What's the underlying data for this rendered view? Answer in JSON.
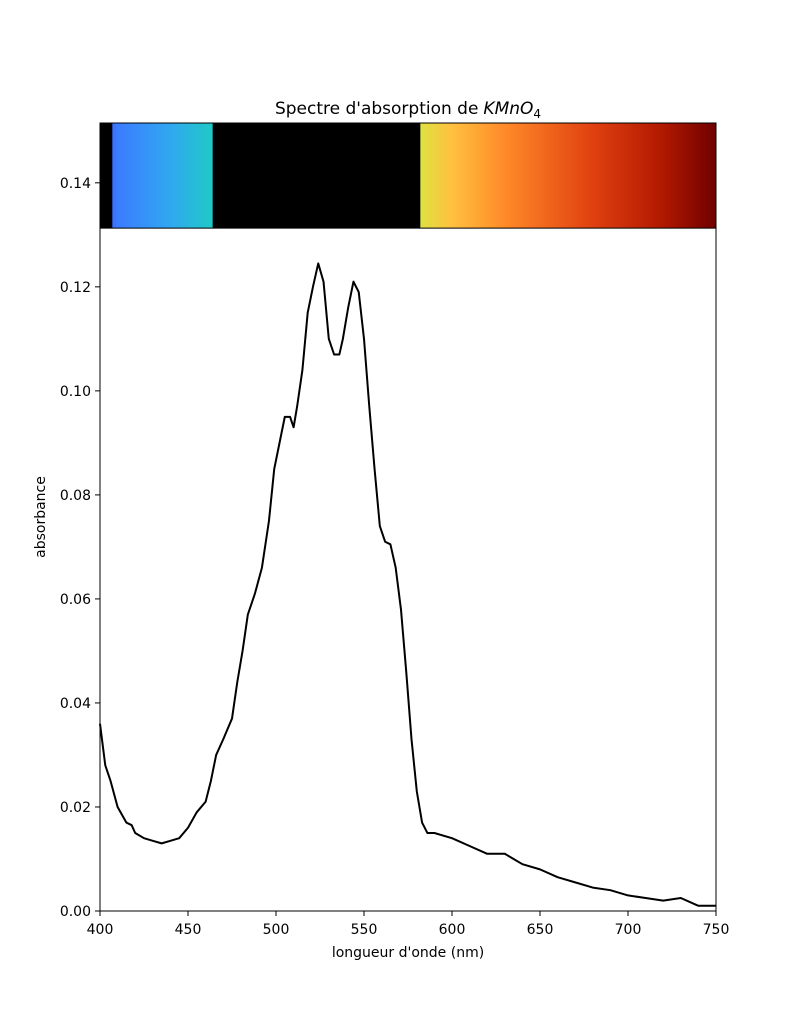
{
  "chart_data": {
    "type": "line",
    "title_parts": [
      "Spectre d'absorption de",
      "KMnO",
      "4"
    ],
    "xlabel": "longueur d'onde (nm)",
    "ylabel": "absorbance",
    "color": "#000000",
    "x": [
      400,
      403,
      406,
      410,
      415,
      418,
      420,
      425,
      430,
      435,
      440,
      445,
      450,
      455,
      460,
      463,
      466,
      470,
      475,
      478,
      481,
      484,
      488,
      492,
      496,
      499,
      502,
      505,
      508,
      510,
      512,
      515,
      518,
      521,
      524,
      527,
      530,
      533,
      536,
      538,
      541,
      544,
      547,
      550,
      553,
      556,
      559,
      562,
      565,
      568,
      571,
      574,
      577,
      580,
      583,
      586,
      590,
      600,
      610,
      620,
      630,
      640,
      650,
      660,
      670,
      680,
      690,
      700,
      710,
      720,
      730,
      740,
      750
    ],
    "values": [
      0.036,
      0.028,
      0.025,
      0.02,
      0.017,
      0.0165,
      0.015,
      0.014,
      0.0135,
      0.013,
      0.0135,
      0.014,
      0.016,
      0.019,
      0.021,
      0.025,
      0.03,
      0.033,
      0.037,
      0.044,
      0.05,
      0.057,
      0.061,
      0.066,
      0.075,
      0.085,
      0.09,
      0.095,
      0.095,
      0.093,
      0.097,
      0.104,
      0.115,
      0.12,
      0.1245,
      0.121,
      0.11,
      0.107,
      0.107,
      0.11,
      0.116,
      0.121,
      0.119,
      0.11,
      0.097,
      0.085,
      0.074,
      0.071,
      0.0705,
      0.066,
      0.058,
      0.046,
      0.033,
      0.023,
      0.017,
      0.015,
      0.015,
      0.014,
      0.0125,
      0.011,
      0.011,
      0.009,
      0.008,
      0.0065,
      0.0055,
      0.0045,
      0.004,
      0.003,
      0.0025,
      0.002,
      0.0025,
      0.001,
      0.001
    ],
    "xlim": [
      400,
      750
    ],
    "ylim": [
      0,
      0.1515
    ],
    "xticks": [
      400,
      450,
      500,
      550,
      600,
      650,
      700,
      750
    ],
    "yticks": [
      {
        "value": 0,
        "label": "0.00"
      },
      {
        "value": 0.02,
        "label": "0.02"
      },
      {
        "value": 0.04,
        "label": "0.04"
      },
      {
        "value": 0.06,
        "label": "0.06"
      },
      {
        "value": 0.08,
        "label": "0.08"
      },
      {
        "value": 0.1,
        "label": "0.10"
      },
      {
        "value": 0.12,
        "label": "0.12"
      },
      {
        "value": 0.14,
        "label": "0.14"
      }
    ],
    "spectrum_band": {
      "ylim": [
        0.1313,
        0.1515
      ],
      "stops": [
        {
          "nm": 400,
          "color": "#3050ff"
        },
        {
          "nm": 410,
          "color": "#3b7cff"
        },
        {
          "nm": 440,
          "color": "#30a8f0"
        },
        {
          "nm": 463,
          "color": "#20c8c8"
        },
        {
          "nm": 583,
          "color": "#e0e040"
        },
        {
          "nm": 600,
          "color": "#ffc040"
        },
        {
          "nm": 630,
          "color": "#ff8a28"
        },
        {
          "nm": 680,
          "color": "#e04010"
        },
        {
          "nm": 720,
          "color": "#b01800"
        },
        {
          "nm": 750,
          "color": "#700000"
        }
      ],
      "absorbed": [
        [
          400,
          407
        ],
        [
          464,
          582
        ]
      ],
      "absorbed_color": "#000000"
    }
  }
}
